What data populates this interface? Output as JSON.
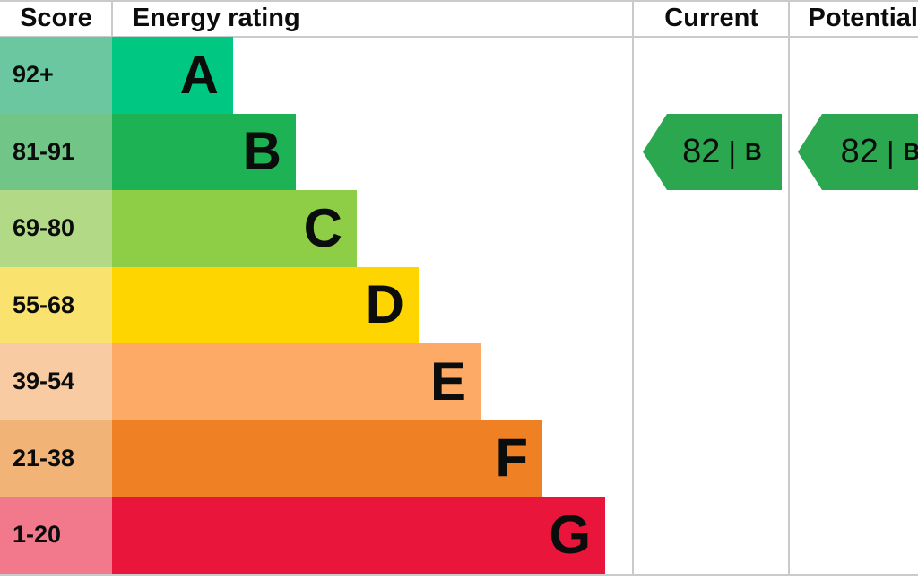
{
  "header": {
    "score": "Score",
    "energy_rating": "Energy rating",
    "current": "Current",
    "potential": "Potential"
  },
  "bands": [
    {
      "score": "92+",
      "letter": "A",
      "bar_color": "#00c781",
      "score_bg": "#6ac7a0"
    },
    {
      "score": "81-91",
      "letter": "B",
      "bar_color": "#1db254",
      "score_bg": "#71c687"
    },
    {
      "score": "69-80",
      "letter": "C",
      "bar_color": "#8dce46",
      "score_bg": "#b2d986"
    },
    {
      "score": "55-68",
      "letter": "D",
      "bar_color": "#ffd500",
      "score_bg": "#fae26e"
    },
    {
      "score": "39-54",
      "letter": "E",
      "bar_color": "#fcaa65",
      "score_bg": "#f9cba3"
    },
    {
      "score": "21-38",
      "letter": "F",
      "bar_color": "#ef8023",
      "score_bg": "#f1b476"
    },
    {
      "score": "1-20",
      "letter": "G",
      "bar_color": "#e9153b",
      "score_bg": "#f1798b"
    }
  ],
  "current": {
    "value": "82",
    "separator": "|",
    "band": "B",
    "arrow_color": "#2ba750"
  },
  "potential": {
    "value": "82",
    "separator": "|",
    "band": "B",
    "arrow_color": "#2ba750"
  },
  "chart_data": {
    "type": "bar",
    "title": "Energy rating",
    "categories": [
      "A",
      "B",
      "C",
      "D",
      "E",
      "F",
      "G"
    ],
    "score_ranges": [
      "92+",
      "81-91",
      "69-80",
      "55-68",
      "39-54",
      "21-38",
      "1-20"
    ],
    "bar_relative_lengths": [
      1,
      2,
      3,
      4,
      5,
      6,
      7
    ],
    "band_colors": [
      "#00c781",
      "#1db254",
      "#8dce46",
      "#ffd500",
      "#fcaa65",
      "#ef8023",
      "#e9153b"
    ],
    "markers": [
      {
        "name": "Current",
        "value": 82,
        "band": "B",
        "color": "#2ba750"
      },
      {
        "name": "Potential",
        "value": 82,
        "band": "B",
        "color": "#2ba750"
      }
    ],
    "legend_position": "none",
    "grid": false
  }
}
